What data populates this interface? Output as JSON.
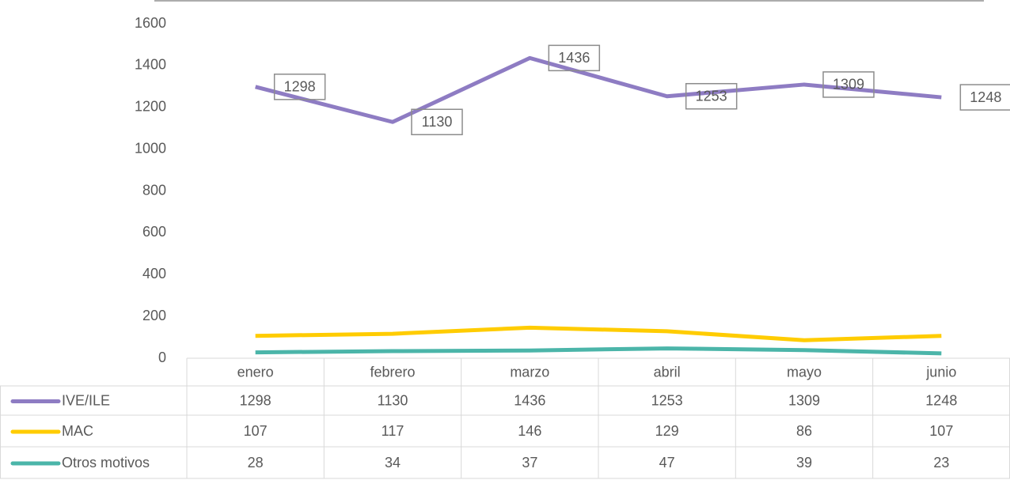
{
  "chart_data": {
    "type": "line",
    "categories": [
      "enero",
      "febrero",
      "marzo",
      "abril",
      "mayo",
      "junio"
    ],
    "series": [
      {
        "name": "IVE/ILE",
        "color": "#8e7cc3",
        "values": [
          1298,
          1130,
          1436,
          1253,
          1309,
          1248
        ],
        "data_labels": true
      },
      {
        "name": "MAC",
        "color": "#ffcc00",
        "values": [
          107,
          117,
          146,
          129,
          86,
          107
        ]
      },
      {
        "name": "Otros motivos",
        "color": "#4bb5a9",
        "values": [
          28,
          34,
          37,
          47,
          39,
          23
        ]
      }
    ],
    "ylim": [
      0,
      1600
    ],
    "yticks": [
      0,
      200,
      400,
      600,
      800,
      1000,
      1200,
      1400,
      1600
    ],
    "grid": false,
    "data_table": true
  }
}
